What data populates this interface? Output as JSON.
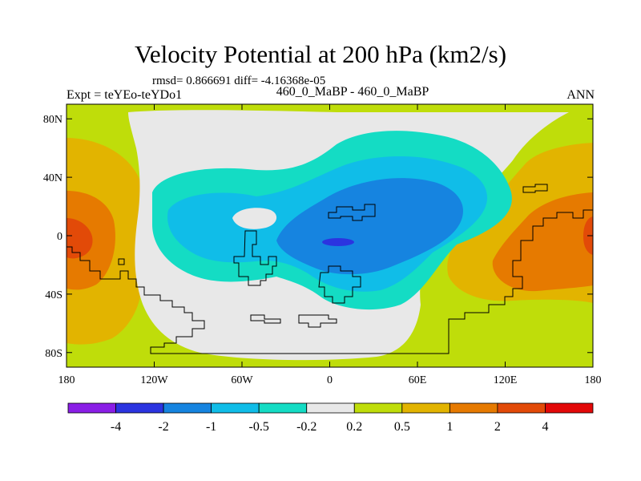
{
  "figure": {
    "title": "Velocity Potential at 200 hPa (km2/s)",
    "stats": "rmsd= 0.866691 diff= -4.16368e-05",
    "expt_label": "Expt = teYEo-teYDo1",
    "case_label": "460_0_MaBP - 460_0_MaBP",
    "season": "ANN"
  },
  "map": {
    "projection": "cylindrical equidistant",
    "lon_range": [
      -180,
      180
    ],
    "lat_range": [
      -90,
      90
    ],
    "y_ticks": [
      {
        "lat": 80,
        "label": "80N"
      },
      {
        "lat": 40,
        "label": "40N"
      },
      {
        "lat": 0,
        "label": "0"
      },
      {
        "lat": -40,
        "label": "40S"
      },
      {
        "lat": -80,
        "label": "80S"
      }
    ],
    "x_ticks": [
      {
        "lon": -180,
        "label": "180"
      },
      {
        "lon": -120,
        "label": "120W"
      },
      {
        "lon": -60,
        "label": "60W"
      },
      {
        "lon": 0,
        "label": "0"
      },
      {
        "lon": 60,
        "label": "60E"
      },
      {
        "lon": 120,
        "label": "120E"
      },
      {
        "lon": 180,
        "label": "180"
      }
    ]
  },
  "colorbar": {
    "colors": [
      "#8a1ee6",
      "#2b34e0",
      "#1684e0",
      "#10bde8",
      "#14dcc4",
      "#e8e8e8",
      "#bfdd0a",
      "#e2b400",
      "#e67a00",
      "#e24a08",
      "#e20808"
    ],
    "labels": [
      "-4",
      "-2",
      "-1",
      "-0.5",
      "-0.2",
      "0.2",
      "0.5",
      "1",
      "2",
      "4"
    ]
  },
  "colors": {
    "background_field": "#bfdd0a",
    "neutral": "#e8e8e8",
    "coastline": "#000000"
  }
}
